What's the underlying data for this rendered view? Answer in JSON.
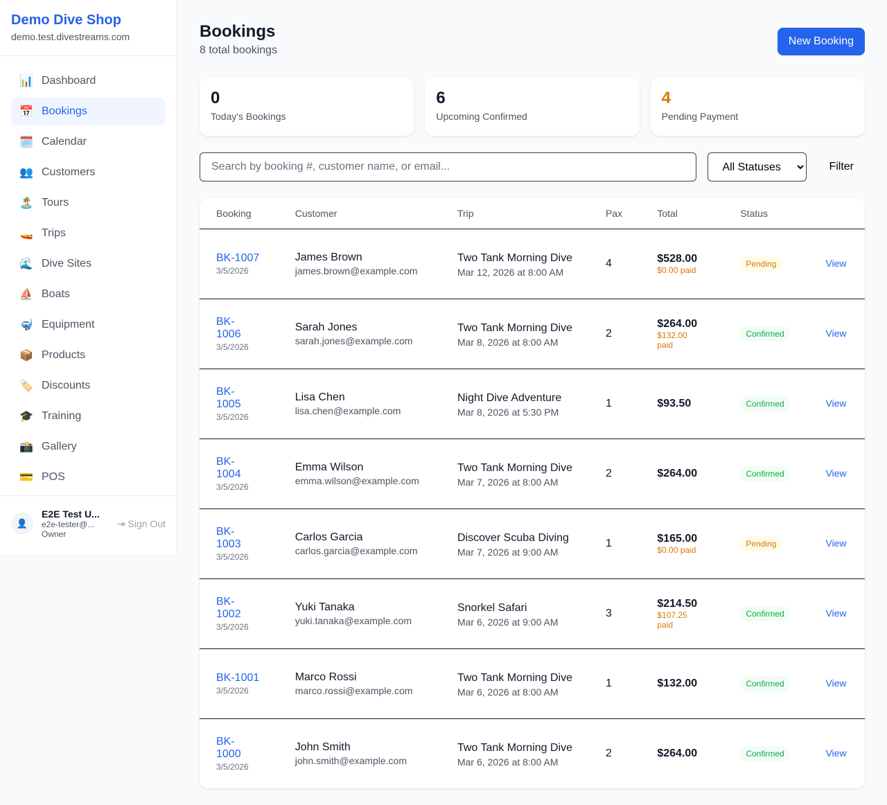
{
  "shop": {
    "name": "Demo Dive Shop",
    "domain": "demo.test.divestreams.com"
  },
  "nav": [
    {
      "icon": "📊",
      "label": "Dashboard"
    },
    {
      "icon": "📅",
      "label": "Bookings",
      "active": true
    },
    {
      "icon": "🗓️",
      "label": "Calendar"
    },
    {
      "icon": "👥",
      "label": "Customers"
    },
    {
      "icon": "🏝️",
      "label": "Tours"
    },
    {
      "icon": "🚤",
      "label": "Trips"
    },
    {
      "icon": "🌊",
      "label": "Dive Sites"
    },
    {
      "icon": "⛵",
      "label": "Boats"
    },
    {
      "icon": "🤿",
      "label": "Equipment"
    },
    {
      "icon": "📦",
      "label": "Products"
    },
    {
      "icon": "🏷️",
      "label": "Discounts"
    },
    {
      "icon": "🎓",
      "label": "Training"
    },
    {
      "icon": "📸",
      "label": "Gallery"
    },
    {
      "icon": "💳",
      "label": "POS"
    }
  ],
  "user": {
    "name": "E2E Test U...",
    "email": "e2e-tester@...",
    "role": "Owner",
    "sign_out": "Sign Out"
  },
  "header": {
    "title": "Bookings",
    "subtitle": "8 total bookings",
    "new_button": "New Booking"
  },
  "stats": [
    {
      "value": "0",
      "label": "Today's Bookings"
    },
    {
      "value": "6",
      "label": "Upcoming Confirmed"
    },
    {
      "value": "4",
      "label": "Pending Payment",
      "color": "#d97706"
    }
  ],
  "filters": {
    "search_placeholder": "Search by booking #, customer name, or email...",
    "status_selected": "All Statuses",
    "filter_button": "Filter"
  },
  "columns": [
    "Booking",
    "Customer",
    "Trip",
    "Pax",
    "Total",
    "Status",
    ""
  ],
  "rows": [
    {
      "id": "BK-1007",
      "date": "3/5/2026",
      "customer": "James Brown",
      "email": "james.brown@example.com",
      "trip": "Two Tank Morning Dive",
      "trip_date": "Mar 12, 2026 at 8:00 AM",
      "pax": "4",
      "total": "$528.00",
      "paid": "$0.00 paid",
      "status": "Pending",
      "action": "View"
    },
    {
      "id": "BK-1006",
      "date": "3/5/2026",
      "customer": "Sarah Jones",
      "email": "sarah.jones@example.com",
      "trip": "Two Tank Morning Dive",
      "trip_date": "Mar 8, 2026 at 8:00 AM",
      "pax": "2",
      "total": "$264.00",
      "paid": "$132.00 paid",
      "status": "Confirmed",
      "action": "View"
    },
    {
      "id": "BK-1005",
      "date": "3/5/2026",
      "customer": "Lisa Chen",
      "email": "lisa.chen@example.com",
      "trip": "Night Dive Adventure",
      "trip_date": "Mar 8, 2026 at 5:30 PM",
      "pax": "1",
      "total": "$93.50",
      "paid": "",
      "status": "Confirmed",
      "action": "View"
    },
    {
      "id": "BK-1004",
      "date": "3/5/2026",
      "customer": "Emma Wilson",
      "email": "emma.wilson@example.com",
      "trip": "Two Tank Morning Dive",
      "trip_date": "Mar 7, 2026 at 8:00 AM",
      "pax": "2",
      "total": "$264.00",
      "paid": "",
      "status": "Confirmed",
      "action": "View"
    },
    {
      "id": "BK-1003",
      "date": "3/5/2026",
      "customer": "Carlos Garcia",
      "email": "carlos.garcia@example.com",
      "trip": "Discover Scuba Diving",
      "trip_date": "Mar 7, 2026 at 9:00 AM",
      "pax": "1",
      "total": "$165.00",
      "paid": "$0.00 paid",
      "status": "Pending",
      "action": "View"
    },
    {
      "id": "BK-1002",
      "date": "3/5/2026",
      "customer": "Yuki Tanaka",
      "email": "yuki.tanaka@example.com",
      "trip": "Snorkel Safari",
      "trip_date": "Mar 6, 2026 at 9:00 AM",
      "pax": "3",
      "total": "$214.50",
      "paid": "$107.25 paid",
      "status": "Confirmed",
      "action": "View"
    },
    {
      "id": "BK-1001",
      "date": "3/5/2026",
      "customer": "Marco Rossi",
      "email": "marco.rossi@example.com",
      "trip": "Two Tank Morning Dive",
      "trip_date": "Mar 6, 2026 at 8:00 AM",
      "pax": "1",
      "total": "$132.00",
      "paid": "",
      "status": "Confirmed",
      "action": "View"
    },
    {
      "id": "BK-1000",
      "date": "3/5/2026",
      "customer": "John Smith",
      "email": "john.smith@example.com",
      "trip": "Two Tank Morning Dive",
      "trip_date": "Mar 6, 2026 at 8:00 AM",
      "pax": "2",
      "total": "$264.00",
      "paid": "",
      "status": "Confirmed",
      "action": "View"
    }
  ]
}
